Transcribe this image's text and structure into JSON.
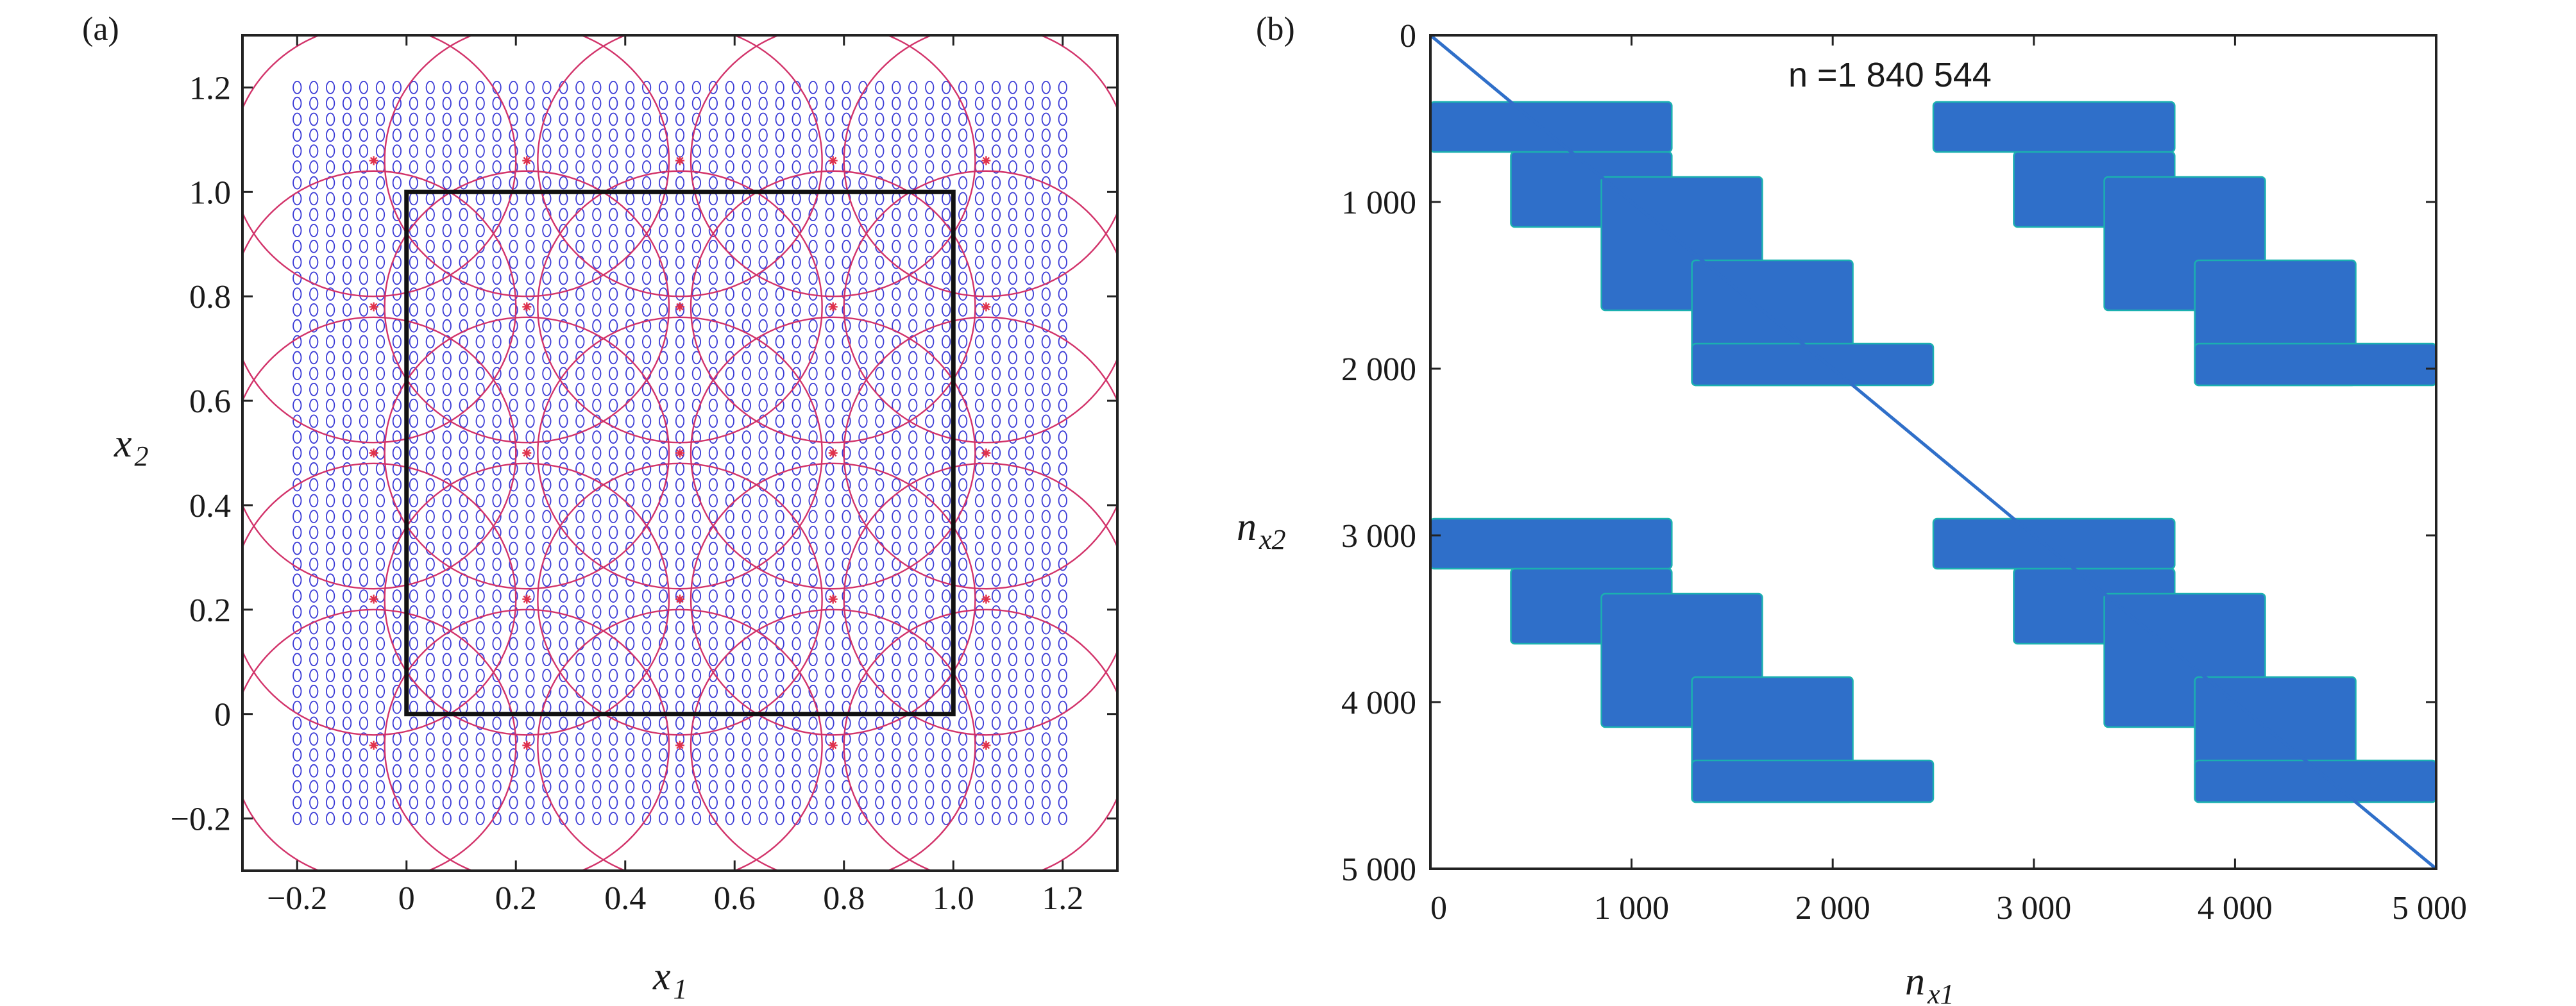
{
  "chart_data": [
    {
      "type": "scatter",
      "panel_label": "(a)",
      "xlabel": "x",
      "xlabel_sub": "1",
      "ylabel": "x",
      "ylabel_sub": "2",
      "xlim": [
        -0.3,
        1.3
      ],
      "ylim": [
        -0.3,
        1.3
      ],
      "xticks": [
        -0.2,
        0,
        0.2,
        0.4,
        0.6,
        0.8,
        1.0,
        1.2
      ],
      "yticks": [
        -0.2,
        0,
        0.2,
        0.4,
        0.6,
        0.8,
        1.0,
        1.2
      ],
      "xtick_labels": [
        "−0.2",
        "0",
        "0.2",
        "0.4",
        "0.6",
        "0.8",
        "1.0",
        "1.2"
      ],
      "ytick_labels": [
        "−0.2",
        "0",
        "0.2",
        "0.4",
        "0.6",
        "0.8",
        "1.0",
        "1.2"
      ],
      "grid": false,
      "nodes": {
        "marker": "circle-open",
        "color": "#3a3ad6",
        "x_range": [
          -0.2,
          1.2
        ],
        "y_range": [
          -0.2,
          1.2
        ],
        "nx": 47,
        "ny": 47
      },
      "centers": {
        "marker": "star",
        "color": "#e0314b",
        "values": [
          -0.06,
          0.22,
          0.5,
          0.78,
          1.06
        ]
      },
      "support_radius": 0.26,
      "domain_box": {
        "x": [
          0,
          1
        ],
        "y": [
          0,
          1
        ],
        "color": "#111111"
      },
      "colors": {
        "circle": "#d2336a",
        "node": "#3a3ad6",
        "center": "#e0314b"
      }
    },
    {
      "type": "heatmap",
      "panel_label": "(b)",
      "annotation": "n =1 840 544",
      "xlabel": "n",
      "xlabel_sub": "x1",
      "ylabel": "n",
      "ylabel_sub": "x2",
      "xlim": [
        0,
        5000
      ],
      "ylim": [
        0,
        5000
      ],
      "y_inverted": true,
      "xticks": [
        0,
        1000,
        2000,
        3000,
        4000,
        5000
      ],
      "yticks": [
        0,
        1000,
        2000,
        3000,
        4000,
        5000
      ],
      "xtick_labels": [
        "0",
        "1 000",
        "2 000",
        "3 000",
        "4 000",
        "5 000"
      ],
      "ytick_labels": [
        "0",
        "1 000",
        "2 000",
        "3 000",
        "4 000",
        "5 000"
      ],
      "grid": false,
      "fill_color": "#2f6fc9",
      "edge_color": "#1bb0b0",
      "block_offsets": [
        [
          0,
          0
        ],
        [
          2500,
          0
        ],
        [
          0,
          2500
        ],
        [
          2500,
          2500
        ]
      ],
      "staircase_steps": [
        {
          "x": [
            0,
            1200
          ],
          "y": [
            400,
            700
          ]
        },
        {
          "x": [
            400,
            1200
          ],
          "y": [
            700,
            1150
          ]
        },
        {
          "x": [
            850,
            1650
          ],
          "y": [
            850,
            1650
          ]
        },
        {
          "x": [
            1300,
            2100
          ],
          "y": [
            1350,
            2100
          ]
        },
        {
          "x": [
            1300,
            2500
          ],
          "y": [
            1850,
            2100
          ]
        }
      ],
      "diagonal": {
        "from": [
          0,
          0
        ],
        "to": [
          5000,
          5000
        ]
      }
    }
  ]
}
